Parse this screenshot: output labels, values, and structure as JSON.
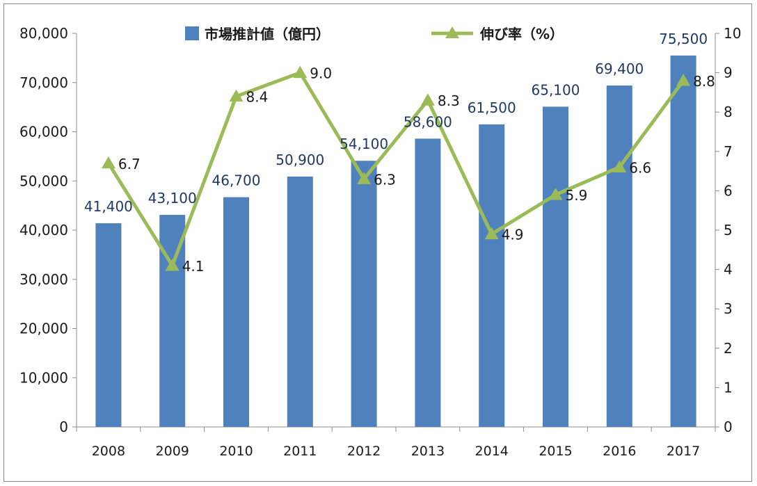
{
  "chart_data": {
    "type": "bar",
    "title": "",
    "categories": [
      "2008",
      "2009",
      "2010",
      "2011",
      "2012",
      "2013",
      "2014",
      "2015",
      "2016",
      "2017"
    ],
    "series": [
      {
        "name": "市場推計値（億円）",
        "type": "bar",
        "axis": "left",
        "values": [
          41400,
          43100,
          46700,
          50900,
          54100,
          58600,
          61500,
          65100,
          69400,
          75500
        ],
        "labels": [
          "41,400",
          "43,100",
          "46,700",
          "50,900",
          "54,100",
          "58,600",
          "61,500",
          "65,100",
          "69,400",
          "75,500"
        ],
        "color": "#4f81bd"
      },
      {
        "name": "伸び率（%）",
        "type": "line",
        "axis": "right",
        "marker": "triangle",
        "values": [
          6.7,
          4.1,
          8.4,
          9.0,
          6.3,
          8.3,
          4.9,
          5.9,
          6.6,
          8.8
        ],
        "labels": [
          "6.7",
          "4.1",
          "8.4",
          "9.0",
          "6.3",
          "8.3",
          "4.9",
          "5.9",
          "6.6",
          "8.8"
        ],
        "color": "#9bbb59"
      }
    ],
    "y_left": {
      "min": 0,
      "max": 80000,
      "ticks": [
        "0",
        "10,000",
        "20,000",
        "30,000",
        "40,000",
        "50,000",
        "60,000",
        "70,000",
        "80,000"
      ],
      "tick_values": [
        0,
        10000,
        20000,
        30000,
        40000,
        50000,
        60000,
        70000,
        80000
      ]
    },
    "y_right": {
      "min": 0,
      "max": 10,
      "ticks": [
        "0",
        "1",
        "2",
        "3",
        "4",
        "5",
        "6",
        "7",
        "8",
        "9",
        "10"
      ],
      "tick_values": [
        0,
        1,
        2,
        3,
        4,
        5,
        6,
        7,
        8,
        9,
        10
      ]
    },
    "xlabel": "",
    "ylabel": "",
    "grid": false,
    "legend_position": "top"
  }
}
